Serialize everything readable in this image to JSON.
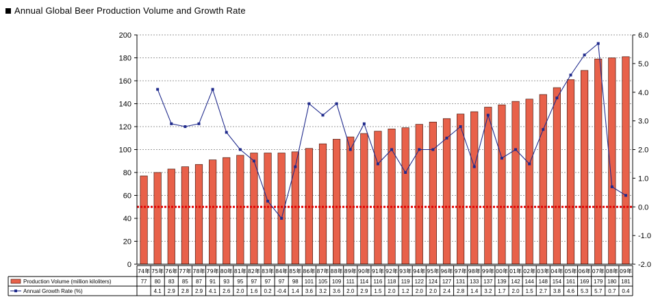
{
  "title": "Annual Global Beer Production Volume and Growth Rate",
  "chart_data": {
    "type": "bar",
    "title": "Annual Global Beer Production Volume and Growth Rate",
    "categories": [
      "74年",
      "75年",
      "76年",
      "77年",
      "78年",
      "79年",
      "80年",
      "81年",
      "82年",
      "83年",
      "84年",
      "85年",
      "86年",
      "87年",
      "88年",
      "89年",
      "90年",
      "91年",
      "92年",
      "93年",
      "94年",
      "95年",
      "96年",
      "97年",
      "98年",
      "99年",
      "00年",
      "01年",
      "02年",
      "03年",
      "04年",
      "05年",
      "06年",
      "07年",
      "08年",
      "09年"
    ],
    "series": [
      {
        "name": "Production Volume (million kiloliters)",
        "type": "bar",
        "axis": "left",
        "color": "#e8614a",
        "values": [
          77,
          80,
          83,
          85,
          87,
          91,
          93,
          95,
          97,
          97,
          97,
          98,
          101,
          105,
          109,
          111,
          114,
          116,
          118,
          119,
          122,
          124,
          127,
          131,
          133,
          137,
          139,
          142,
          144,
          148,
          154,
          161,
          169,
          179,
          180,
          181
        ]
      },
      {
        "name": "Annual Growth Rate (%)",
        "type": "line",
        "axis": "right",
        "color": "#1f2a8c",
        "values": [
          null,
          4.1,
          2.9,
          2.8,
          2.9,
          4.1,
          2.6,
          2.0,
          1.6,
          0.2,
          -0.4,
          1.4,
          3.6,
          3.2,
          3.6,
          2.0,
          2.9,
          1.5,
          2.0,
          1.2,
          2.0,
          2.0,
          2.4,
          2.8,
          1.4,
          3.2,
          1.7,
          2.0,
          1.5,
          2.7,
          3.8,
          4.6,
          5.3,
          5.7,
          0.7,
          0.4
        ]
      }
    ],
    "ylim_left": [
      0,
      200
    ],
    "yticks_left": [
      "0",
      "20",
      "40",
      "60",
      "80",
      "100",
      "120",
      "140",
      "160",
      "180",
      "200"
    ],
    "ylim_right": [
      -2.0,
      6.0
    ],
    "yticks_right": [
      "-2.0",
      "-1.0",
      "0.0",
      "1.0",
      "2.0",
      "3.0",
      "4.0",
      "5.0",
      "6.0"
    ],
    "reference_line": {
      "axis": "right",
      "value": 0.0,
      "color": "#e00000",
      "style": "dotted"
    },
    "grid": true,
    "legend": "data table below chart",
    "table": {
      "row1_label": "Production Volume (million kiloliters)",
      "row1": [
        "77",
        "80",
        "83",
        "85",
        "87",
        "91",
        "93",
        "95",
        "97",
        "97",
        "97",
        "98",
        "101",
        "105",
        "109",
        "111",
        "114",
        "116",
        "118",
        "119",
        "122",
        "124",
        "127",
        "131",
        "133",
        "137",
        "139",
        "142",
        "144",
        "148",
        "154",
        "161",
        "169",
        "179",
        "180",
        "181"
      ],
      "row2_label": "Annual Growth Rate (%)",
      "row2": [
        "",
        "4.1",
        "2.9",
        "2.8",
        "2.9",
        "4.1",
        "2.6",
        "2.0",
        "1.6",
        "0.2",
        "-0.4",
        "1.4",
        "3.6",
        "3.2",
        "3.6",
        "2.0",
        "2.9",
        "1.5",
        "2.0",
        "1.2",
        "2.0",
        "2.0",
        "2.4",
        "2.8",
        "1.4",
        "3.2",
        "1.7",
        "2.0",
        "1.5",
        "2.7",
        "3.8",
        "4.6",
        "5.3",
        "5.7",
        "0.7",
        "0.4"
      ]
    }
  }
}
